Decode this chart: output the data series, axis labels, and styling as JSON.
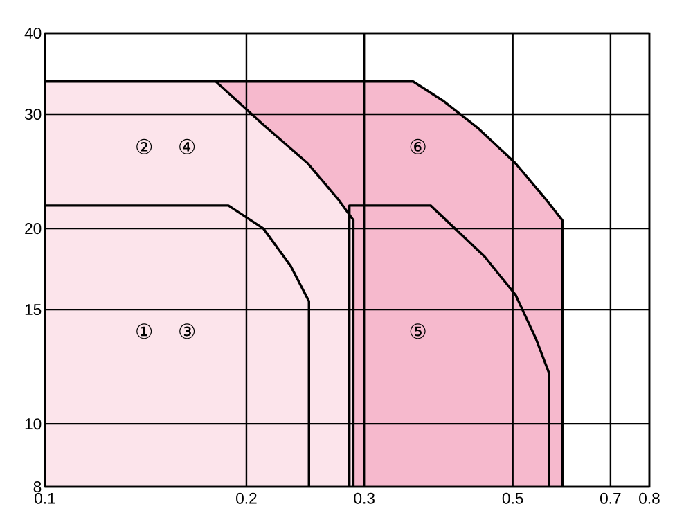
{
  "chart_data": {
    "type": "area",
    "log": "xy",
    "xlim": [
      0.1,
      0.8
    ],
    "ylim": [
      8,
      40
    ],
    "xticks": [
      0.1,
      0.2,
      0.3,
      0.5,
      0.7,
      0.8
    ],
    "yticks": [
      8,
      10,
      15,
      20,
      30,
      40
    ],
    "grid": true,
    "series": [
      {
        "color": "#f6b9cd",
        "x": [
          0.1,
          0.355,
          0.393,
          0.443,
          0.505,
          0.562,
          0.593
        ],
        "values": [
          33.7,
          33.7,
          31.5,
          28.6,
          25.2,
          22.1,
          20.6
        ]
      },
      {
        "color": "#fce4eb",
        "x": [
          0.1,
          0.18,
          0.212,
          0.247,
          0.275,
          0.289
        ],
        "values": [
          33.7,
          33.7,
          28.9,
          25.2,
          22.1,
          20.6
        ]
      },
      {
        "type": "line",
        "color": "#000000",
        "x": [
          0.1,
          0.188,
          0.212,
          0.233,
          0.248,
          0.248
        ],
        "values": [
          21.7,
          21.7,
          20,
          17.5,
          15.45,
          8
        ]
      },
      {
        "type": "line",
        "color": "#000000",
        "x": [
          0.285,
          0.285,
          0.377,
          0.454,
          0.505,
          0.542,
          0.566,
          0.566
        ],
        "values": [
          8,
          21.7,
          21.7,
          18.1,
          15.8,
          13.5,
          12,
          8
        ]
      }
    ],
    "annotations": [
      "①",
      "②",
      "③",
      "④",
      "⑤",
      "⑥"
    ]
  }
}
